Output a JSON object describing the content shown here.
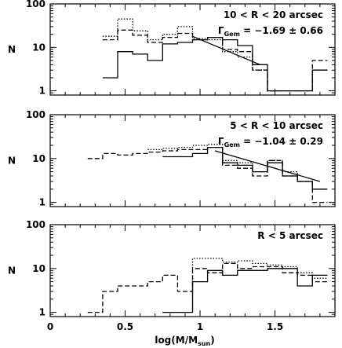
{
  "chart_data": [
    {
      "type": "line",
      "step": true,
      "annotation": {
        "line1": "10 < R < 20 arcsec",
        "gamma_prefix": "Γ",
        "gamma_sub": "Gem",
        "gamma_value": " = −1.69 ± 0.66"
      },
      "ylabel": "N",
      "yscale": "log",
      "ylim": [
        0.8,
        100
      ],
      "xlim": [
        0,
        1.9
      ],
      "yticks": [
        {
          "v": 1,
          "label": "1"
        },
        {
          "v": 10,
          "label": "10"
        },
        {
          "v": 100,
          "label": "100"
        }
      ],
      "bin_edges": [
        0.25,
        0.35,
        0.45,
        0.55,
        0.65,
        0.75,
        0.85,
        0.95,
        1.05,
        1.15,
        1.25,
        1.35,
        1.45,
        1.55,
        1.65,
        1.75,
        1.85
      ],
      "series": [
        {
          "style": "solid",
          "range": [
            0.35,
            1.85
          ],
          "values": [
            2,
            8,
            7,
            5,
            12,
            13,
            15,
            17,
            15,
            11,
            4,
            1,
            1,
            1,
            3
          ]
        },
        {
          "style": "dashed",
          "range": [
            0.35,
            1.85
          ],
          "values": [
            15,
            25,
            19,
            13,
            17,
            21,
            15,
            17,
            9,
            8,
            3,
            1,
            1,
            1,
            5
          ]
        },
        {
          "style": "dotted",
          "range": [
            0.35,
            1.85
          ],
          "values": [
            18,
            45,
            24,
            15,
            20,
            30,
            16,
            15,
            8,
            6,
            3,
            1,
            1,
            1,
            3
          ]
        }
      ],
      "fit": {
        "x": [
          0.95,
          1.4
        ],
        "y": [
          18,
          4
        ]
      }
    },
    {
      "type": "line",
      "step": true,
      "annotation": {
        "line1": "5 < R < 10 arcsec",
        "gamma_prefix": "Γ",
        "gamma_sub": "Gem",
        "gamma_value": " = −1.04 ± 0.29"
      },
      "ylabel": "N",
      "yscale": "log",
      "ylim": [
        0.8,
        100
      ],
      "xlim": [
        0,
        1.9
      ],
      "yticks": [
        {
          "v": 1,
          "label": "1"
        },
        {
          "v": 10,
          "label": "10"
        },
        {
          "v": 100,
          "label": "100"
        }
      ],
      "bin_edges": [
        0.25,
        0.35,
        0.45,
        0.55,
        0.65,
        0.75,
        0.85,
        0.95,
        1.05,
        1.15,
        1.25,
        1.35,
        1.45,
        1.55,
        1.65,
        1.75,
        1.85
      ],
      "series": [
        {
          "style": "solid",
          "range": [
            0.75,
            1.85
          ],
          "values": [
            11,
            11,
            13,
            18,
            8,
            7,
            5,
            8,
            4,
            3,
            2
          ]
        },
        {
          "style": "dashed",
          "range": [
            0.25,
            1.85
          ],
          "values": [
            10,
            13,
            12,
            13,
            14,
            15,
            16,
            16,
            18,
            7,
            6,
            4,
            9,
            4,
            3,
            1
          ]
        },
        {
          "style": "dotted",
          "range": [
            0.65,
            1.85
          ],
          "values": [
            16,
            17,
            18,
            20,
            21,
            9,
            8,
            5,
            9,
            5,
            3,
            2
          ]
        }
      ],
      "fit": {
        "x": [
          1.1,
          1.8
        ],
        "y": [
          15,
          3
        ]
      }
    },
    {
      "type": "line",
      "step": true,
      "annotation": {
        "line1": "R < 5 arcsec"
      },
      "ylabel": "N",
      "xlabel_prefix": "log(M/M",
      "xlabel_sub": "sun",
      "xlabel_suffix": ")",
      "yscale": "log",
      "ylim": [
        0.8,
        100
      ],
      "xlim": [
        0,
        1.9
      ],
      "xticks": [
        {
          "v": 0,
          "label": "0"
        },
        {
          "v": 0.5,
          "label": "0.5"
        },
        {
          "v": 1,
          "label": "1"
        },
        {
          "v": 1.5,
          "label": "1.5"
        }
      ],
      "yticks": [
        {
          "v": 1,
          "label": "1"
        },
        {
          "v": 10,
          "label": "10"
        },
        {
          "v": 100,
          "label": "100"
        }
      ],
      "bin_edges": [
        0.25,
        0.35,
        0.45,
        0.55,
        0.65,
        0.75,
        0.85,
        0.95,
        1.05,
        1.15,
        1.25,
        1.35,
        1.45,
        1.55,
        1.65,
        1.75,
        1.85
      ],
      "series": [
        {
          "style": "solid",
          "range": [
            0.75,
            1.85
          ],
          "values": [
            1,
            1,
            5,
            9,
            7,
            9,
            9,
            10,
            10,
            4,
            7
          ]
        },
        {
          "style": "dashed",
          "range": [
            0.25,
            1.85
          ],
          "values": [
            1,
            3,
            4,
            4,
            5,
            7,
            3,
            10,
            8,
            13,
            10,
            11,
            11,
            8,
            7,
            5
          ]
        },
        {
          "style": "dotted",
          "range": [
            0.75,
            1.85
          ],
          "values": [
            1,
            1,
            17,
            17,
            14,
            15,
            13,
            12,
            11,
            8,
            6
          ]
        }
      ]
    }
  ]
}
